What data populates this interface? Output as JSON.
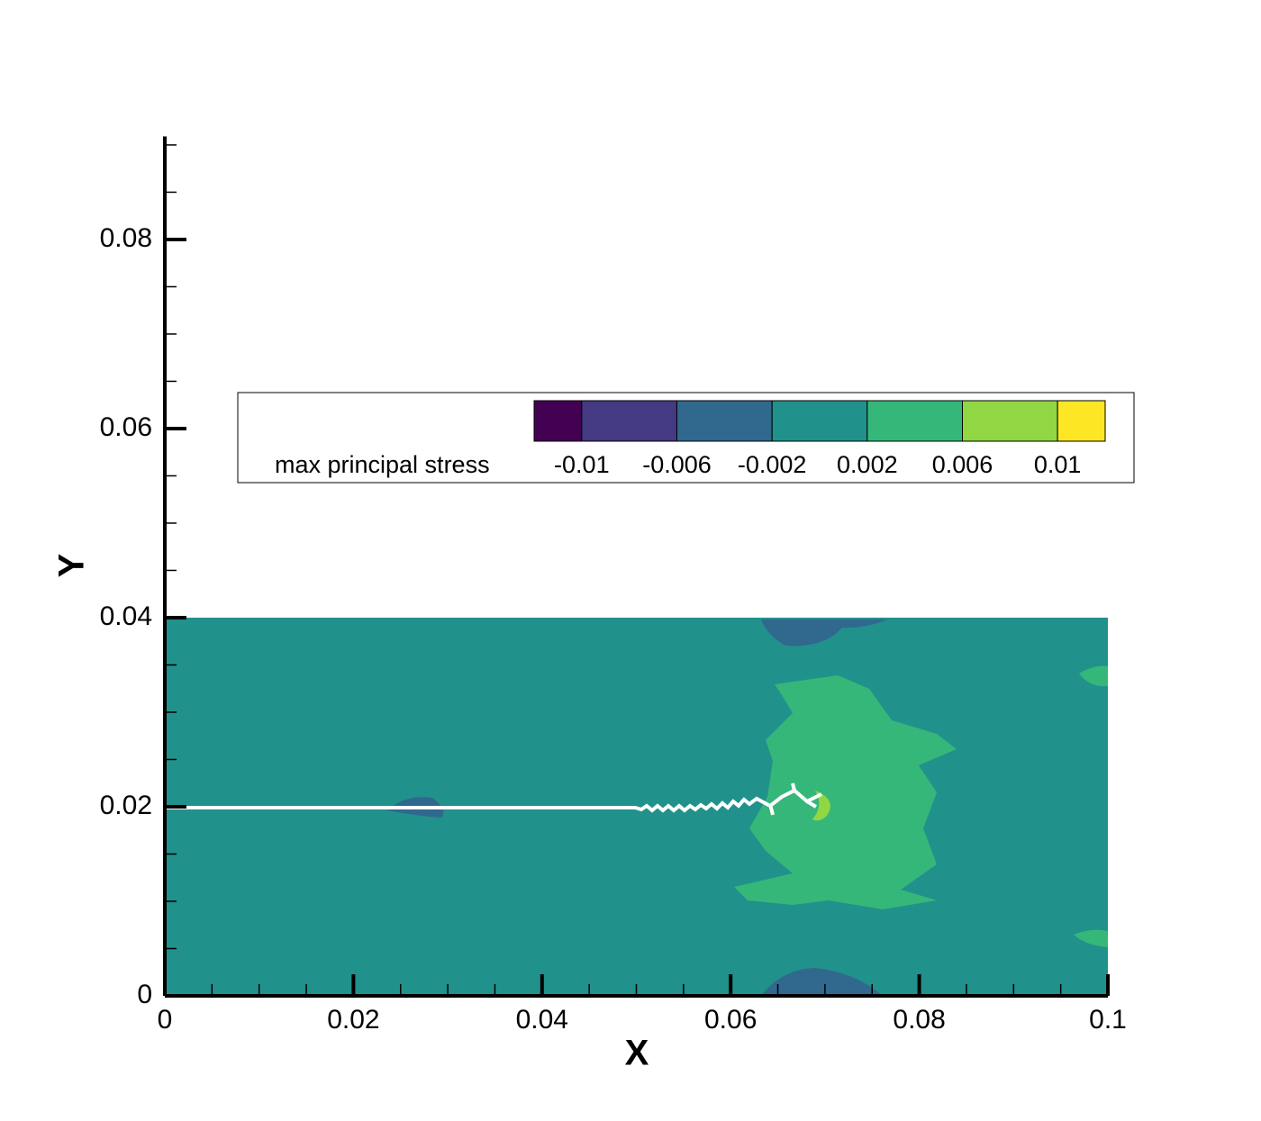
{
  "chart_data": {
    "type": "contour",
    "x_label": "X",
    "y_label": "Y",
    "xlim": [
      0,
      0.1
    ],
    "ylim": [
      0,
      0.0909
    ],
    "xticks": [
      0,
      0.02,
      0.04,
      0.06,
      0.08,
      0.1
    ],
    "yticks": [
      0,
      0.02,
      0.04,
      0.06,
      0.08
    ],
    "field": {
      "x": [
        0,
        0.1
      ],
      "y": [
        0,
        0.04
      ],
      "color": "#21918c"
    },
    "colorbar": {
      "label": "max principal stress",
      "range": [
        -0.012,
        0.012
      ],
      "levels": [
        -0.01,
        -0.006,
        -0.002,
        0.002,
        0.006,
        0.01
      ],
      "colors": [
        "#440154",
        "#443983",
        "#31688e",
        "#21918c",
        "#35b779",
        "#90d743",
        "#fde725"
      ]
    }
  }
}
